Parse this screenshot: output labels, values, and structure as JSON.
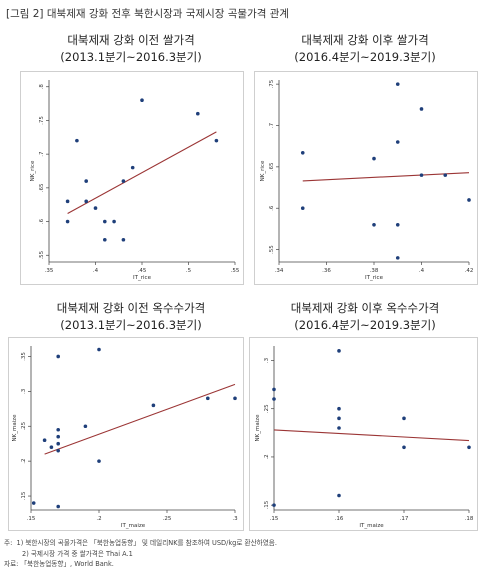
{
  "figure_title": "[그림 2] 대북제재 강화 전후 북한시장과 국제시장 곡물가격 관계",
  "notes": {
    "n1_prefix": "주:",
    "n1": "1) 북한시장의 곡물가격은 「북한농업동향」 및 데일리NK를 참조하여 USD/kg로 환산하였음.",
    "n2": "2) 국제시장 가격 중 쌀가격은 Thai A.1",
    "src": "자료: 「북한농업동향」, World Bank."
  },
  "panels": [
    {
      "title1": "대북제재 강화 이전 쌀가격",
      "title2": "(2013.1분기~2016.3분기)"
    },
    {
      "title1": "대북제재 강화 이후 쌀가격",
      "title2": "(2016.4분기~2019.3분기)"
    },
    {
      "title1": "대북제재 강화 이전 옥수수가격",
      "title2": "(2013.1분기~2016.3분기)"
    },
    {
      "title1": "대북제재 강화 이후 옥수수가격",
      "title2": "(2016.4분기~2019.3분기)"
    }
  ],
  "colors": {
    "points": "#1f3f7a",
    "fit_line": "#9b3535",
    "axis": "#444444"
  },
  "chart_data": [
    {
      "type": "scatter",
      "title": "대북제재 강화 이전 쌀가격",
      "xlabel": "IT_rice",
      "ylabel": "NK_rice",
      "xlim": [
        0.35,
        0.55
      ],
      "ylim": [
        0.54,
        0.81
      ],
      "xticks": [
        0.35,
        0.4,
        0.45,
        0.5,
        0.55
      ],
      "xtick_labels": [
        ".35",
        ".4",
        ".45",
        ".5",
        ".55"
      ],
      "yticks": [
        0.55,
        0.6,
        0.65,
        0.7,
        0.75,
        0.8
      ],
      "ytick_labels": [
        ".55",
        ".6",
        ".65",
        ".7",
        ".75",
        ".8"
      ],
      "points": [
        [
          0.37,
          0.63
        ],
        [
          0.37,
          0.6
        ],
        [
          0.38,
          0.72
        ],
        [
          0.39,
          0.66
        ],
        [
          0.39,
          0.63
        ],
        [
          0.4,
          0.62
        ],
        [
          0.41,
          0.6
        ],
        [
          0.41,
          0.573
        ],
        [
          0.42,
          0.6
        ],
        [
          0.43,
          0.573
        ],
        [
          0.43,
          0.66
        ],
        [
          0.44,
          0.68
        ],
        [
          0.45,
          0.78
        ],
        [
          0.51,
          0.76
        ],
        [
          0.53,
          0.72
        ]
      ],
      "fit": [
        [
          0.37,
          0.612
        ],
        [
          0.53,
          0.733
        ]
      ]
    },
    {
      "type": "scatter",
      "title": "대북제재 강화 이후 쌀가격",
      "xlabel": "IT_rice",
      "ylabel": "NK_rice",
      "xlim": [
        0.34,
        0.42
      ],
      "ylim": [
        0.535,
        0.755
      ],
      "xticks": [
        0.34,
        0.36,
        0.38,
        0.4,
        0.42
      ],
      "xtick_labels": [
        ".34",
        ".36",
        ".38",
        ".4",
        ".42"
      ],
      "yticks": [
        0.55,
        0.6,
        0.65,
        0.7,
        0.75
      ],
      "ytick_labels": [
        ".55",
        ".6",
        ".65",
        ".7",
        ".75"
      ],
      "points": [
        [
          0.35,
          0.667
        ],
        [
          0.35,
          0.6
        ],
        [
          0.38,
          0.66
        ],
        [
          0.38,
          0.58
        ],
        [
          0.39,
          0.75
        ],
        [
          0.39,
          0.68
        ],
        [
          0.39,
          0.58
        ],
        [
          0.39,
          0.54
        ],
        [
          0.4,
          0.72
        ],
        [
          0.4,
          0.64
        ],
        [
          0.41,
          0.64
        ],
        [
          0.42,
          0.61
        ]
      ],
      "fit": [
        [
          0.35,
          0.633
        ],
        [
          0.42,
          0.643
        ]
      ]
    },
    {
      "type": "scatter",
      "title": "대북제재 강화 이전 옥수수가격",
      "xlabel": "IT_maize",
      "ylabel": "NK_maize",
      "xlim": [
        0.15,
        0.3
      ],
      "ylim": [
        0.13,
        0.365
      ],
      "xticks": [
        0.15,
        0.2,
        0.25,
        0.3
      ],
      "xtick_labels": [
        ".15",
        ".2",
        ".25",
        ".3"
      ],
      "yticks": [
        0.15,
        0.2,
        0.25,
        0.3,
        0.35
      ],
      "ytick_labels": [
        ".15",
        ".2",
        ".25",
        ".3",
        ".35"
      ],
      "points": [
        [
          0.152,
          0.14
        ],
        [
          0.16,
          0.23
        ],
        [
          0.165,
          0.22
        ],
        [
          0.17,
          0.35
        ],
        [
          0.17,
          0.245
        ],
        [
          0.17,
          0.235
        ],
        [
          0.17,
          0.225
        ],
        [
          0.17,
          0.215
        ],
        [
          0.17,
          0.135
        ],
        [
          0.19,
          0.25
        ],
        [
          0.2,
          0.36
        ],
        [
          0.2,
          0.2
        ],
        [
          0.24,
          0.28
        ],
        [
          0.28,
          0.29
        ],
        [
          0.3,
          0.29
        ]
      ],
      "fit": [
        [
          0.16,
          0.21
        ],
        [
          0.3,
          0.31
        ]
      ]
    },
    {
      "type": "scatter",
      "title": "대북제재 강화 이후 옥수수가격",
      "xlabel": "IT_maize",
      "ylabel": "NK_maize",
      "xlim": [
        0.15,
        0.18
      ],
      "ylim": [
        0.145,
        0.315
      ],
      "xticks": [
        0.15,
        0.16,
        0.17,
        0.18
      ],
      "xtick_labels": [
        ".15",
        ".16",
        ".17",
        ".18"
      ],
      "yticks": [
        0.15,
        0.2,
        0.25,
        0.3
      ],
      "ytick_labels": [
        ".15",
        ".2",
        ".25",
        ".3"
      ],
      "points": [
        [
          0.15,
          0.27
        ],
        [
          0.15,
          0.26
        ],
        [
          0.15,
          0.15
        ],
        [
          0.16,
          0.31
        ],
        [
          0.16,
          0.25
        ],
        [
          0.16,
          0.24
        ],
        [
          0.16,
          0.23
        ],
        [
          0.16,
          0.16
        ],
        [
          0.17,
          0.24
        ],
        [
          0.17,
          0.21
        ],
        [
          0.18,
          0.21
        ]
      ],
      "fit": [
        [
          0.15,
          0.228
        ],
        [
          0.18,
          0.217
        ]
      ]
    }
  ]
}
